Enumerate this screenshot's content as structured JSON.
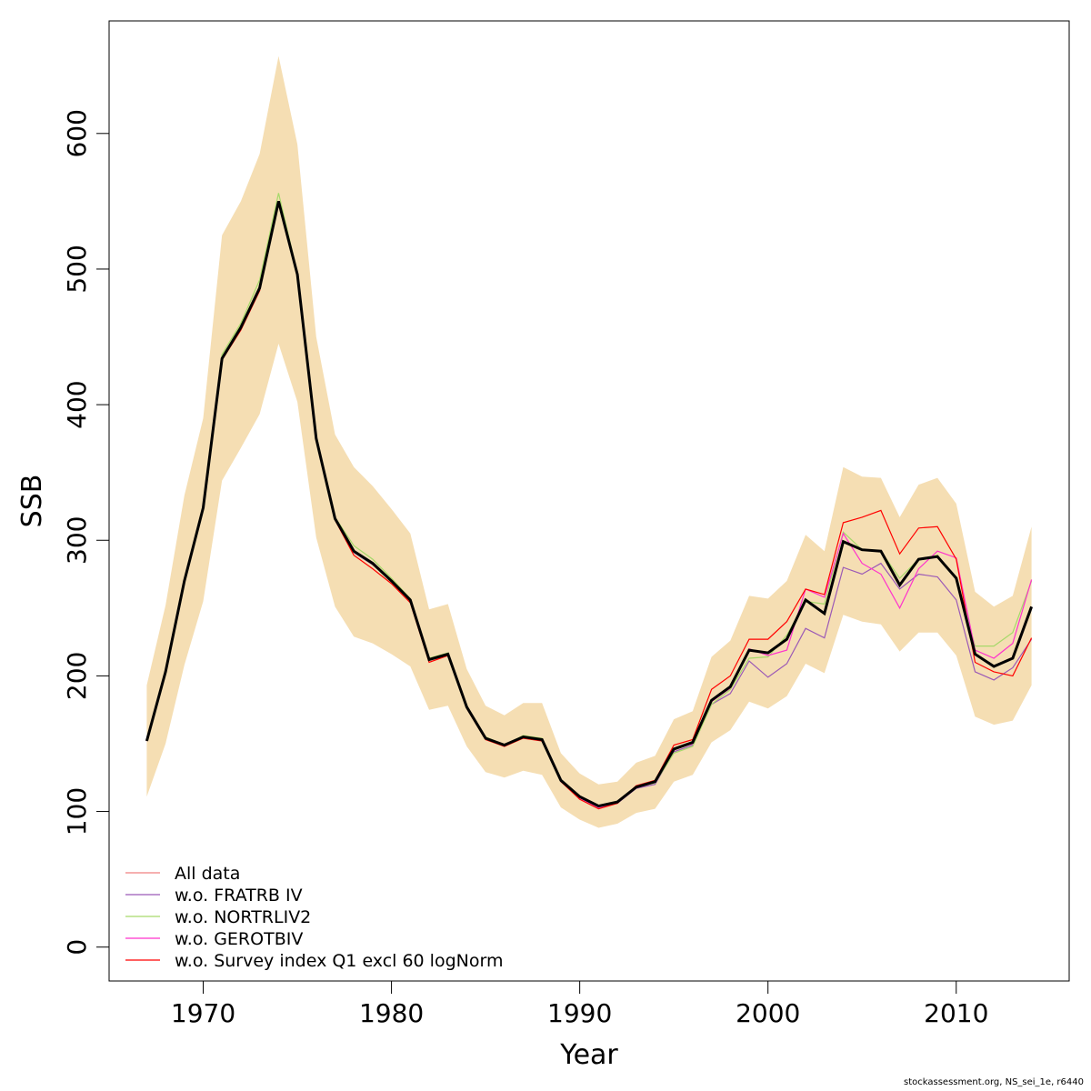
{
  "chart_data": {
    "type": "line",
    "title": "",
    "xlabel": "Year",
    "ylabel": "SSB",
    "xlim": [
      1965,
      2016
    ],
    "ylim": [
      -25,
      683
    ],
    "x_ticks": [
      1970,
      1980,
      1990,
      2000,
      2010
    ],
    "y_ticks": [
      0,
      100,
      200,
      300,
      400,
      500,
      600
    ],
    "grid": false,
    "legend_position": "bottom-left",
    "band_color": "#F5DEB3",
    "x": [
      1967,
      1968,
      1969,
      1970,
      1971,
      1972,
      1973,
      1974,
      1975,
      1976,
      1977,
      1978,
      1979,
      1980,
      1981,
      1982,
      1983,
      1984,
      1985,
      1986,
      1987,
      1988,
      1989,
      1990,
      1991,
      1992,
      1993,
      1994,
      1995,
      1996,
      1997,
      1998,
      1999,
      2000,
      2001,
      2002,
      2003,
      2004,
      2005,
      2006,
      2007,
      2008,
      2009,
      2010,
      2011,
      2012,
      2013,
      2014
    ],
    "band_upper": [
      193,
      252,
      333,
      390,
      525,
      550,
      585,
      657,
      592,
      450,
      378,
      354,
      340,
      323,
      305,
      249,
      253,
      205,
      178,
      171,
      180,
      180,
      143,
      128,
      120,
      122,
      136,
      141,
      168,
      174,
      214,
      226,
      259,
      257,
      270,
      304,
      292,
      354,
      347,
      346,
      317,
      341,
      346,
      327,
      262,
      251,
      259,
      310
    ],
    "band_lower": [
      111,
      150,
      208,
      255,
      344,
      368,
      393,
      445,
      402,
      302,
      251,
      229,
      224,
      216,
      207,
      175,
      178,
      148,
      129,
      125,
      130,
      127,
      103,
      94,
      88,
      91,
      99,
      102,
      122,
      127,
      151,
      160,
      181,
      176,
      185,
      209,
      202,
      245,
      240,
      238,
      218,
      232,
      232,
      215,
      170,
      164,
      167,
      193
    ],
    "main_line": [
      152,
      203,
      270,
      324,
      434,
      457,
      486,
      550,
      496,
      375,
      316,
      292,
      283,
      270,
      256,
      212,
      216,
      177,
      154,
      149,
      155,
      153,
      123,
      111,
      104,
      107,
      118,
      122,
      146,
      151,
      182,
      192,
      219,
      217,
      227,
      256,
      246,
      299,
      293,
      292,
      267,
      286,
      288,
      272,
      216,
      207,
      213,
      251
    ],
    "series": [
      {
        "name": "All data",
        "color": "#F08080",
        "values": [
          152,
          203,
          270,
          324,
          434,
          457,
          486,
          550,
          496,
          375,
          316,
          292,
          283,
          270,
          256,
          212,
          216,
          177,
          154,
          149,
          155,
          153,
          123,
          111,
          104,
          107,
          118,
          122,
          146,
          151,
          182,
          192,
          219,
          217,
          227,
          256,
          246,
          299,
          293,
          292,
          267,
          286,
          288,
          272,
          216,
          207,
          213,
          251
        ]
      },
      {
        "name": "w.o. FRATRB IV",
        "color": "#9B59B6",
        "values": [
          152,
          203,
          270,
          324,
          434,
          457,
          486,
          549,
          495,
          375,
          316,
          291,
          282,
          270,
          256,
          212,
          216,
          177,
          154,
          148,
          155,
          153,
          122,
          110,
          103,
          106,
          117,
          120,
          144,
          149,
          179,
          187,
          211,
          199,
          209,
          235,
          228,
          280,
          275,
          283,
          264,
          275,
          273,
          256,
          203,
          197,
          206,
          227
        ]
      },
      {
        "name": "w.o. NORTRLIV2",
        "color": "#A6D96A",
        "values": [
          153,
          204,
          271,
          325,
          437,
          460,
          492,
          556,
          497,
          377,
          317,
          296,
          286,
          272,
          257,
          213,
          217,
          177,
          155,
          149,
          156,
          154,
          123,
          111,
          104,
          107,
          118,
          121,
          143,
          148,
          179,
          190,
          213,
          214,
          230,
          255,
          253,
          306,
          293,
          292,
          272,
          286,
          289,
          272,
          222,
          222,
          232,
          270
        ]
      },
      {
        "name": "w.o. GEROTBIV",
        "color": "#FF33CC",
        "values": [
          152,
          203,
          270,
          324,
          434,
          457,
          486,
          550,
          496,
          375,
          316,
          292,
          283,
          270,
          256,
          212,
          216,
          177,
          154,
          149,
          155,
          153,
          123,
          110,
          103,
          107,
          118,
          122,
          146,
          150,
          181,
          191,
          220,
          215,
          219,
          264,
          258,
          305,
          283,
          275,
          250,
          279,
          292,
          287,
          219,
          213,
          224,
          271
        ]
      },
      {
        "name": "w.o. Survey index Q1 excl 60 logNorm",
        "color": "#FF0000",
        "values": [
          152,
          203,
          270,
          324,
          433,
          455,
          484,
          549,
          495,
          374,
          315,
          289,
          279,
          268,
          254,
          210,
          215,
          176,
          153,
          148,
          154,
          152,
          122,
          109,
          102,
          106,
          119,
          123,
          149,
          153,
          190,
          200,
          227,
          227,
          240,
          264,
          260,
          313,
          317,
          322,
          290,
          309,
          310,
          286,
          210,
          203,
          200,
          228
        ]
      }
    ]
  },
  "footer": "stockassessment.org, NS_sei_1e, r6440"
}
